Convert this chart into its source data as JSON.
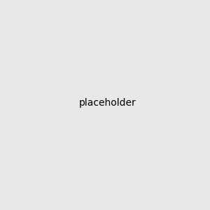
{
  "bg_color": "#e8e8e8",
  "bond_color": "#1a1a1a",
  "S_color": "#cccc00",
  "N_color": "#4444cc",
  "O_color": "#cc2200",
  "CN_color": "#008888",
  "NH_color": "#7799aa",
  "figsize": [
    3.0,
    3.0
  ],
  "dpi": 100
}
